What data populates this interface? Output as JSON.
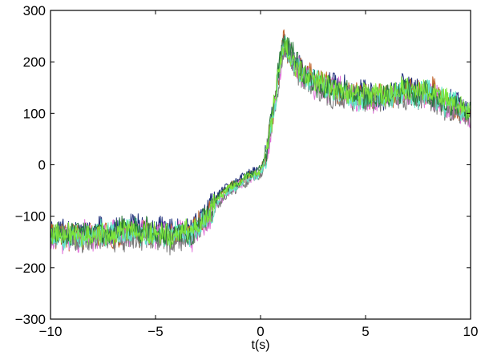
{
  "chart_data": {
    "type": "line",
    "title": "",
    "xlabel": "t(s)",
    "ylabel": "",
    "xlim": [
      -10,
      10
    ],
    "ylim": [
      -300,
      300
    ],
    "x_ticks": [
      -10,
      -5,
      0,
      5,
      10
    ],
    "x_tick_labels": [
      "−10",
      "−5",
      "0",
      "5",
      "10"
    ],
    "y_ticks": [
      -300,
      -200,
      -100,
      0,
      100,
      200,
      300
    ],
    "y_tick_labels": [
      "−300",
      "−200",
      "−100",
      "0",
      "100",
      "200",
      "300"
    ],
    "grid": false,
    "legend": "none",
    "trace_shape": {
      "t": [
        -10,
        -8,
        -6,
        -4,
        -3.2,
        -2.6,
        -2.0,
        -1.5,
        -1.0,
        -0.5,
        0.0,
        0.3,
        0.6,
        0.9,
        1.1,
        1.5,
        2.0,
        3.0,
        4.0,
        5.0,
        6.0,
        7.0,
        8.0,
        9.0,
        10.0
      ],
      "value": [
        -130,
        -135,
        -130,
        -135,
        -130,
        -100,
        -65,
        -45,
        -35,
        -20,
        -15,
        20,
        100,
        190,
        240,
        205,
        175,
        155,
        140,
        135,
        135,
        145,
        140,
        120,
        100
      ]
    },
    "series": [
      {
        "color": "#1f2f7a",
        "seed": 11,
        "offset": 5,
        "noise": 22
      },
      {
        "color": "#c0622a",
        "seed": 23,
        "offset": 0,
        "noise": 22
      },
      {
        "color": "#e070d8",
        "seed": 37,
        "offset": -5,
        "noise": 24
      },
      {
        "color": "#7a7a7a",
        "seed": 41,
        "offset": -10,
        "noise": 24
      },
      {
        "color": "#5fe8c8",
        "seed": 53,
        "offset": -3,
        "noise": 22
      },
      {
        "color": "#2a7a3a",
        "seed": 67,
        "offset": 3,
        "noise": 20
      },
      {
        "color": "#7ee63a",
        "seed": 79,
        "offset": 0,
        "noise": 20
      }
    ]
  }
}
